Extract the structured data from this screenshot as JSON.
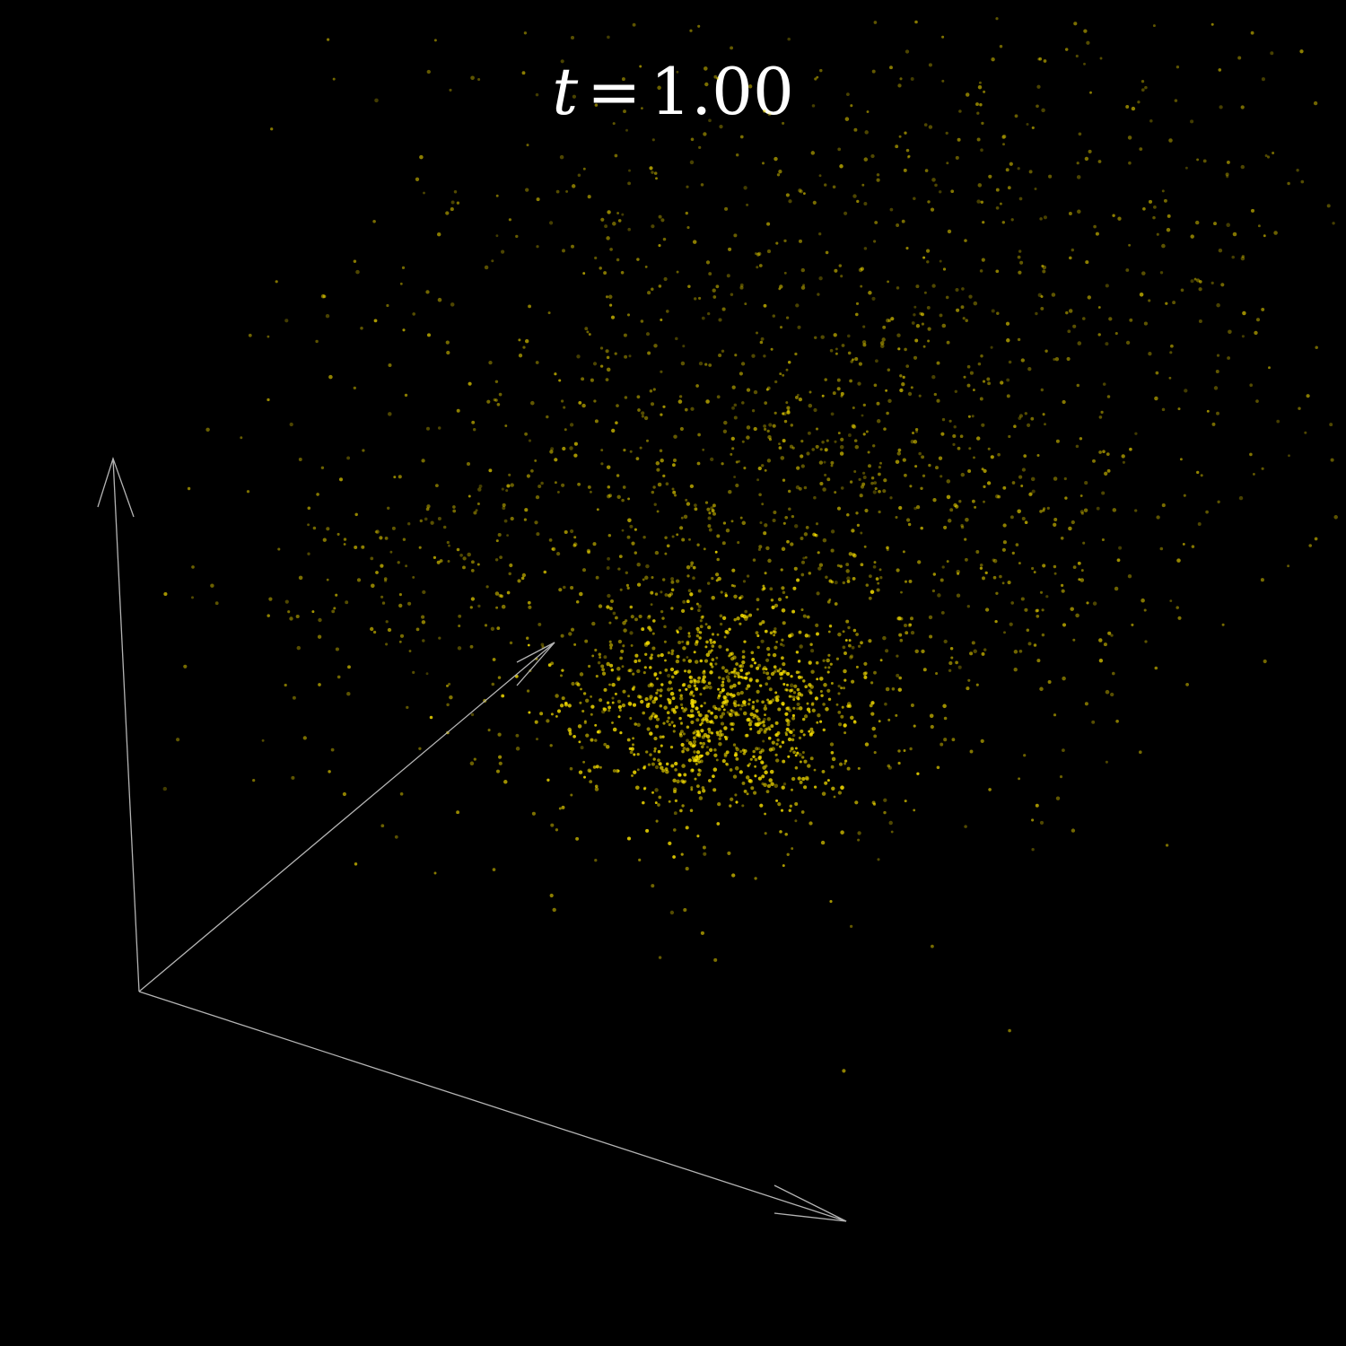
{
  "title": {
    "variable": "t",
    "equals": "=",
    "value": "1.00"
  },
  "colors": {
    "background": "#000000",
    "particles": "#ffe600",
    "axes": "#b4b4b4",
    "label": "#ffffff"
  },
  "axes": [
    {
      "name": "axis-vertical"
    },
    {
      "name": "axis-depth"
    },
    {
      "name": "axis-horizontal"
    }
  ]
}
